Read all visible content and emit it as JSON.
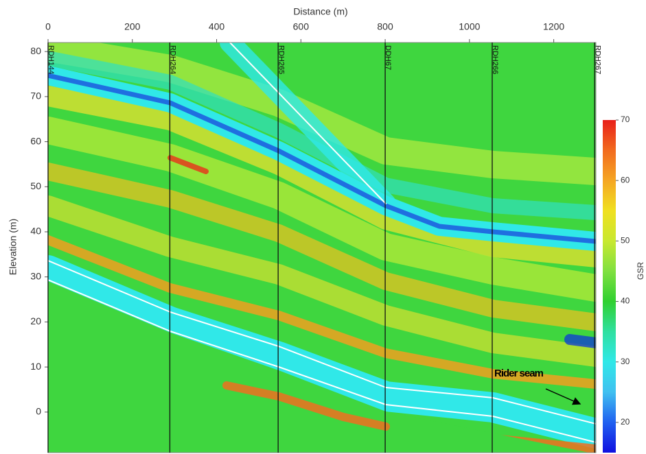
{
  "chart_data": {
    "type": "contour",
    "x_label": "Distance (m)",
    "y_label": "Elevation (m)",
    "xlim": [
      0,
      1300
    ],
    "xticks": [
      0,
      200,
      400,
      600,
      800,
      1000,
      1200
    ],
    "ylim": [
      -9,
      82
    ],
    "yticks": [
      0,
      10,
      20,
      30,
      40,
      50,
      60,
      70,
      80
    ],
    "colorbar": {
      "label": "GSR",
      "zlim": [
        15,
        70
      ],
      "ticks": [
        20,
        30,
        40,
        50,
        60,
        70
      ],
      "colors": [
        "#1010e0",
        "#2060f0",
        "#40c0f0",
        "#30e8e8",
        "#30e0a0",
        "#30d030",
        "#80e040",
        "#c8e830",
        "#f0e020",
        "#f5a623",
        "#f26b1f",
        "#e8201a"
      ]
    },
    "boreholes": [
      {
        "name": "RDH144",
        "x": 0
      },
      {
        "name": "RDH264",
        "x": 289
      },
      {
        "name": "RDH265",
        "x": 546
      },
      {
        "name": "DDH67",
        "x": 800
      },
      {
        "name": "RDH266",
        "x": 1054
      },
      {
        "name": "RDH267",
        "x": 1297
      }
    ],
    "annotation": "Rider seam"
  }
}
